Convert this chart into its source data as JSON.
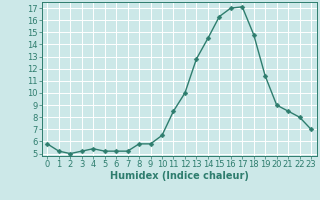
{
  "x": [
    0,
    1,
    2,
    3,
    4,
    5,
    6,
    7,
    8,
    9,
    10,
    11,
    12,
    13,
    14,
    15,
    16,
    17,
    18,
    19,
    20,
    21,
    22,
    23
  ],
  "y": [
    5.8,
    5.2,
    5.0,
    5.2,
    5.4,
    5.2,
    5.2,
    5.2,
    5.8,
    5.8,
    6.5,
    8.5,
    10.0,
    12.8,
    14.5,
    16.3,
    17.0,
    17.1,
    14.8,
    11.4,
    9.0,
    8.5,
    8.0,
    7.0
  ],
  "line_color": "#2e7d6e",
  "marker": "D",
  "marker_size": 2.5,
  "line_width": 1.0,
  "xlabel": "Humidex (Indice chaleur)",
  "xlim": [
    -0.5,
    23.5
  ],
  "ylim": [
    4.8,
    17.5
  ],
  "yticks": [
    5,
    6,
    7,
    8,
    9,
    10,
    11,
    12,
    13,
    14,
    15,
    16,
    17
  ],
  "xticks": [
    0,
    1,
    2,
    3,
    4,
    5,
    6,
    7,
    8,
    9,
    10,
    11,
    12,
    13,
    14,
    15,
    16,
    17,
    18,
    19,
    20,
    21,
    22,
    23
  ],
  "xtick_labels": [
    "0",
    "1",
    "2",
    "3",
    "4",
    "5",
    "6",
    "7",
    "8",
    "9",
    "10",
    "11",
    "12",
    "13",
    "14",
    "15",
    "16",
    "17",
    "18",
    "19",
    "20",
    "21",
    "22",
    "23"
  ],
  "background_color": "#cce8e8",
  "grid_color": "#ffffff",
  "tick_color": "#2e7d6e",
  "label_color": "#2e7d6e",
  "xlabel_fontsize": 7,
  "tick_fontsize": 6
}
